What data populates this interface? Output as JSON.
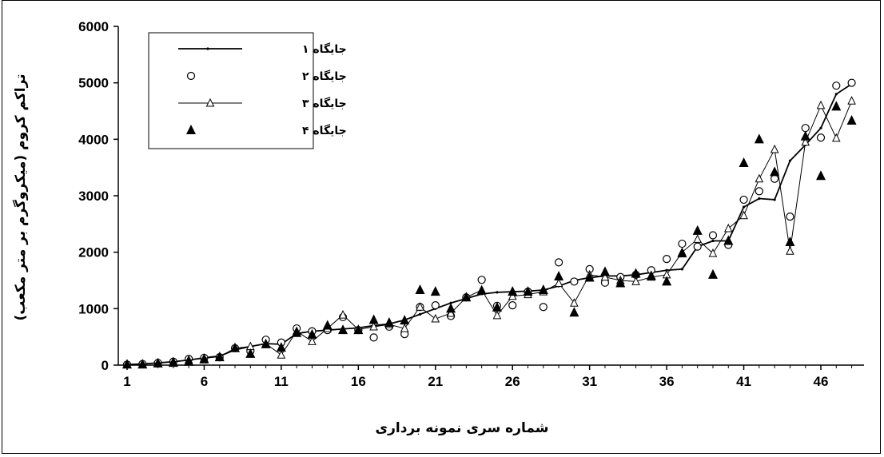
{
  "chart_data": {
    "type": "line",
    "xlabel": "شماره سری نمونه برداری",
    "ylabel": "تراکم کروم (میکروگرم بر متر مکعب)",
    "xlim": [
      0,
      49
    ],
    "ylim": [
      0,
      6000
    ],
    "x_ticks": [
      1,
      6,
      11,
      16,
      21,
      26,
      31,
      36,
      41,
      46
    ],
    "y_ticks": [
      0,
      1000,
      2000,
      3000,
      4000,
      5000,
      6000
    ],
    "legend_position": "top-left",
    "series": [
      {
        "name": "جایگاه ۱",
        "marker": "dot",
        "color": "#000000",
        "x": [
          1,
          2,
          3,
          4,
          5,
          6,
          7,
          8,
          9,
          10,
          11,
          12,
          13,
          14,
          15,
          16,
          17,
          18,
          19,
          20,
          21,
          22,
          23,
          24,
          25,
          26,
          27,
          28,
          29,
          30,
          31,
          32,
          33,
          34,
          35,
          36,
          37,
          38,
          39,
          40,
          41,
          42,
          43,
          44,
          45,
          46,
          47,
          48
        ],
        "values": [
          10,
          20,
          40,
          60,
          90,
          130,
          160,
          270,
          330,
          380,
          370,
          560,
          600,
          620,
          640,
          660,
          700,
          730,
          800,
          900,
          1000,
          1100,
          1180,
          1260,
          1290,
          1300,
          1310,
          1330,
          1400,
          1500,
          1550,
          1580,
          1580,
          1600,
          1640,
          1680,
          1700,
          2100,
          2200,
          2200,
          2800,
          2950,
          2930,
          3620,
          3900,
          4200,
          4800,
          4980
        ]
      },
      {
        "name": "جایگاه ۲",
        "marker": "circle",
        "color": "#000000",
        "x": [
          1,
          2,
          3,
          4,
          5,
          6,
          7,
          8,
          9,
          10,
          11,
          12,
          13,
          14,
          15,
          16,
          17,
          18,
          19,
          20,
          21,
          22,
          23,
          24,
          25,
          26,
          27,
          28,
          29,
          30,
          31,
          32,
          33,
          34,
          35,
          36,
          37,
          38,
          39,
          40,
          41,
          42,
          43,
          44,
          45,
          46,
          47,
          48
        ],
        "values": [
          10,
          20,
          40,
          60,
          110,
          130,
          140,
          300,
          250,
          450,
          400,
          650,
          600,
          620,
          850,
          620,
          490,
          680,
          550,
          1030,
          1060,
          870,
          1200,
          1510,
          1050,
          1060,
          1300,
          1030,
          1820,
          1480,
          1700,
          1460,
          1560,
          1600,
          1680,
          1880,
          2150,
          2100,
          2300,
          2130,
          2930,
          3080,
          3300,
          2630,
          4200,
          4030,
          4950,
          5000
        ]
      },
      {
        "name": "جایگاه ۳",
        "marker": "triangle-open",
        "color": "#000000",
        "x": [
          1,
          2,
          3,
          4,
          5,
          6,
          7,
          8,
          9,
          10,
          11,
          12,
          13,
          14,
          15,
          16,
          17,
          18,
          19,
          20,
          21,
          22,
          23,
          24,
          25,
          26,
          27,
          28,
          29,
          30,
          31,
          32,
          33,
          34,
          35,
          36,
          37,
          38,
          39,
          40,
          41,
          42,
          43,
          44,
          45,
          46,
          47,
          48
        ],
        "values": [
          10,
          20,
          40,
          60,
          90,
          120,
          150,
          300,
          330,
          380,
          180,
          600,
          420,
          650,
          890,
          630,
          680,
          720,
          650,
          1030,
          820,
          920,
          1200,
          1330,
          880,
          1220,
          1250,
          1300,
          1450,
          1100,
          1600,
          1560,
          1500,
          1480,
          1560,
          1600,
          2000,
          2230,
          1980,
          2420,
          2650,
          3300,
          3820,
          2020,
          3950,
          4600,
          4020,
          4680
        ]
      },
      {
        "name": "جایگاه ۴",
        "marker": "triangle-filled",
        "color": "#000000",
        "x": [
          1,
          2,
          3,
          4,
          5,
          6,
          7,
          8,
          9,
          10,
          11,
          12,
          13,
          14,
          15,
          16,
          17,
          18,
          19,
          20,
          21,
          22,
          23,
          24,
          25,
          26,
          27,
          28,
          29,
          30,
          31,
          32,
          33,
          34,
          35,
          36,
          37,
          38,
          39,
          40,
          41,
          42,
          43,
          44,
          45,
          46,
          47,
          48
        ],
        "values": [
          10,
          10,
          30,
          40,
          60,
          100,
          140,
          300,
          200,
          370,
          310,
          570,
          540,
          700,
          620,
          620,
          800,
          750,
          790,
          1330,
          1300,
          1000,
          1200,
          1320,
          1020,
          1300,
          1300,
          1330,
          1570,
          930,
          1550,
          1650,
          1450,
          1620,
          1580,
          1480,
          1980,
          2380,
          1600,
          2200,
          3580,
          4000,
          3420,
          2180,
          4050,
          3350,
          4580,
          4330
        ]
      }
    ]
  }
}
